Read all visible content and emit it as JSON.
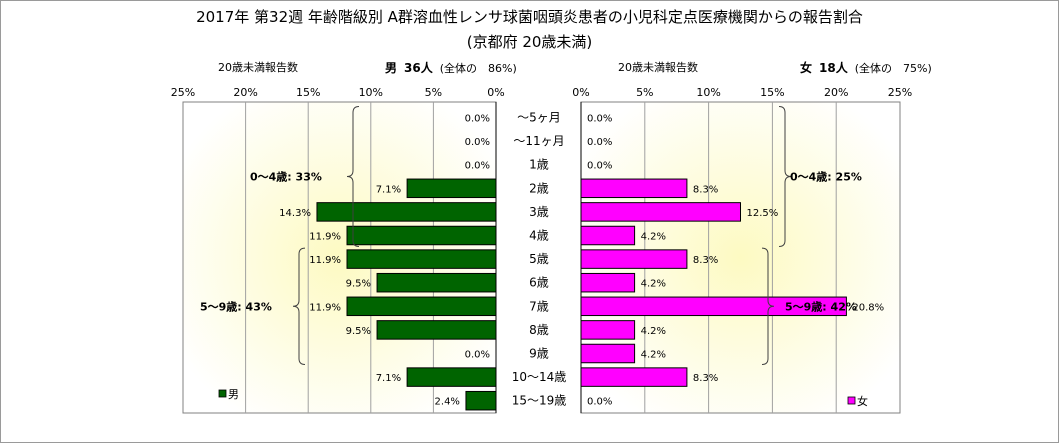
{
  "title": "2017年 第32週 年齢階級別 A群溶血性レンサ球菌咽頭炎患者の小児科定点医療機関からの報告割合",
  "subtitle": "(京都府 20歳未満)",
  "left_header": {
    "count_label": "20歳未満報告数",
    "sex_label": "男",
    "count": "36人",
    "share": "(全体の　86%)"
  },
  "right_header": {
    "count_label": "20歳未満報告数",
    "sex_label": "女",
    "count": "18人",
    "share": "(全体の　75%)"
  },
  "chart_data": {
    "type": "bar",
    "orientation": "horizontal",
    "layout": "population-pyramid",
    "categories": [
      "〜5ヶ月",
      "〜11ヶ月",
      "1歳",
      "2歳",
      "3歳",
      "4歳",
      "5歳",
      "6歳",
      "7歳",
      "8歳",
      "9歳",
      "10〜14歳",
      "15〜19歳"
    ],
    "series": [
      {
        "name": "男",
        "color": "#006400",
        "values": [
          0.0,
          0.0,
          0.0,
          7.1,
          14.3,
          11.9,
          11.9,
          9.5,
          11.9,
          9.5,
          0.0,
          7.1,
          2.4
        ],
        "labels": [
          "0.0%",
          "0.0%",
          "0.0%",
          "7.1%",
          "14.3%",
          "11.9%",
          "11.9%",
          "9.5%",
          "11.9%",
          "9.5%",
          "0.0%",
          "7.1%",
          "2.4%"
        ]
      },
      {
        "name": "女",
        "color": "#ff00ff",
        "values": [
          0.0,
          0.0,
          0.0,
          8.3,
          12.5,
          4.2,
          8.3,
          4.2,
          20.8,
          4.2,
          4.2,
          8.3,
          0.0
        ],
        "labels": [
          "0.0%",
          "0.0%",
          "0.0%",
          "8.3%",
          "12.5%",
          "4.2%",
          "8.3%",
          "4.2%",
          "20.8%",
          "4.2%",
          "4.2%",
          "8.3%",
          "0.0%"
        ]
      }
    ],
    "xlim": [
      0,
      25
    ],
    "xticks": [
      25,
      20,
      15,
      10,
      5,
      0
    ],
    "xtick_labels_left": [
      "25%",
      "20%",
      "15%",
      "10%",
      "5%",
      "0%"
    ],
    "xtick_labels_right": [
      "0%",
      "5%",
      "10%",
      "15%",
      "20%",
      "25%"
    ],
    "grid": true,
    "legend": "bottom corners",
    "annotations": [
      {
        "side": "left",
        "text": "0〜4歳: 33%",
        "from": "〜5ヶ月",
        "to": "4歳"
      },
      {
        "side": "left",
        "text": "5〜9歳: 43%",
        "from": "5歳",
        "to": "9歳"
      },
      {
        "side": "right",
        "text": "0〜4歳: 25%",
        "from": "〜5ヶ月",
        "to": "4歳"
      },
      {
        "side": "right",
        "text": "5〜9歳: 42%",
        "from": "5歳",
        "to": "9歳"
      }
    ]
  }
}
